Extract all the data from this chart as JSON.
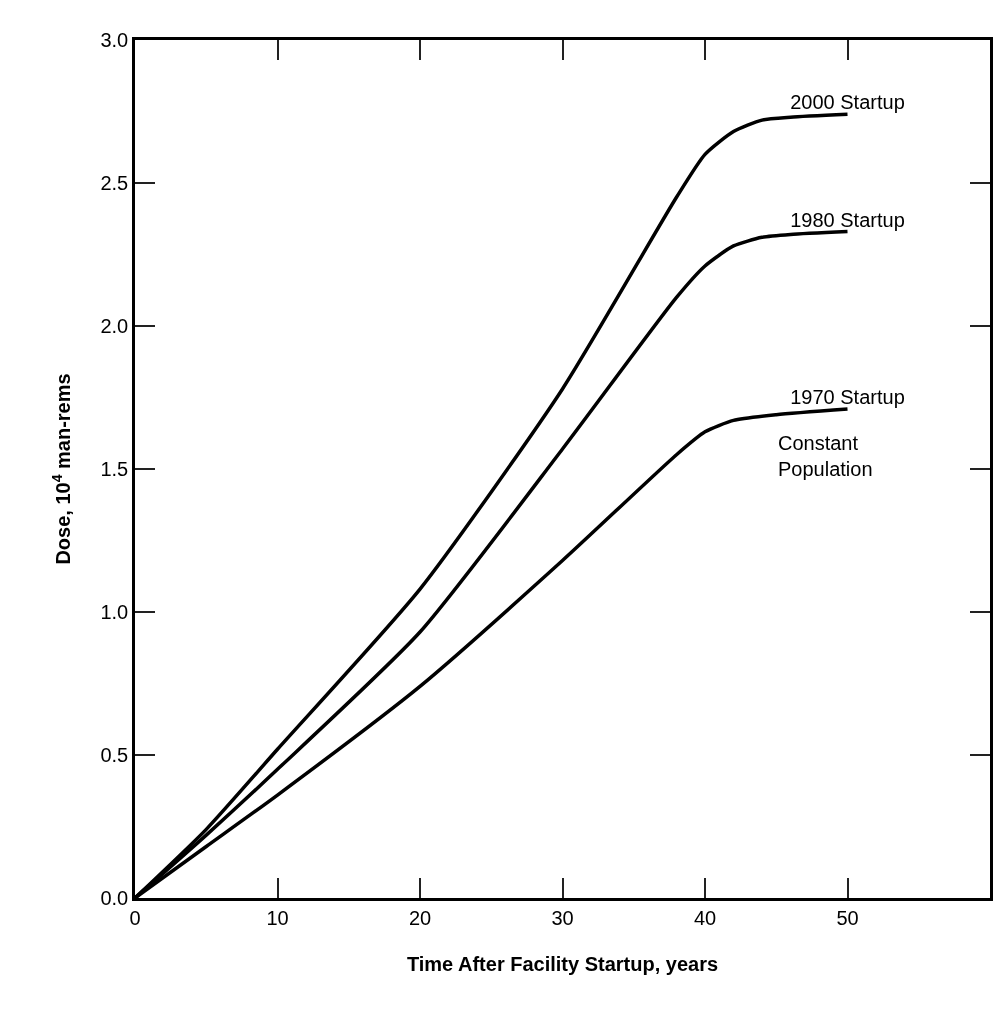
{
  "chart_data": {
    "type": "line",
    "xlabel": "Time After Facility Startup, years",
    "ylabel": "Dose, 10$^{4}$ man-rems",
    "xlim": [
      0,
      60
    ],
    "ylim": [
      0,
      3.0
    ],
    "xticks": [
      0,
      10,
      20,
      30,
      40,
      50
    ],
    "yticks": [
      {
        "value": 0,
        "label": "0.0"
      },
      0.5,
      {
        "value": 1,
        "label": "1.0"
      },
      1.5,
      {
        "value": 2,
        "label": "2.0"
      },
      2.5,
      {
        "value": 3,
        "label": "3.0"
      }
    ],
    "legend": false,
    "marker": "none",
    "line_style": "solid",
    "series": [
      {
        "name": "2000 Startup",
        "color": "#000000",
        "x": [
          0,
          5,
          10,
          20,
          30,
          38,
          40,
          42,
          44,
          46,
          50
        ],
        "values": [
          0,
          0.24,
          0.52,
          1.08,
          1.78,
          2.45,
          2.6,
          2.68,
          2.72,
          2.73,
          2.74
        ]
      },
      {
        "name": "1980 Startup",
        "color": "#000000",
        "x": [
          0,
          5,
          10,
          20,
          30,
          38,
          40,
          42,
          44,
          46,
          50
        ],
        "values": [
          0,
          0.22,
          0.45,
          0.93,
          1.57,
          2.1,
          2.21,
          2.28,
          2.31,
          2.32,
          2.33
        ]
      },
      {
        "name": "1970 Startup",
        "color": "#000000",
        "x": [
          0,
          5,
          10,
          20,
          30,
          38,
          40,
          42,
          45,
          50
        ],
        "values": [
          0,
          0.18,
          0.36,
          0.74,
          1.18,
          1.55,
          1.63,
          1.67,
          1.69,
          1.71
        ]
      }
    ],
    "annotations": [
      "Constant\nPopulation"
    ]
  }
}
